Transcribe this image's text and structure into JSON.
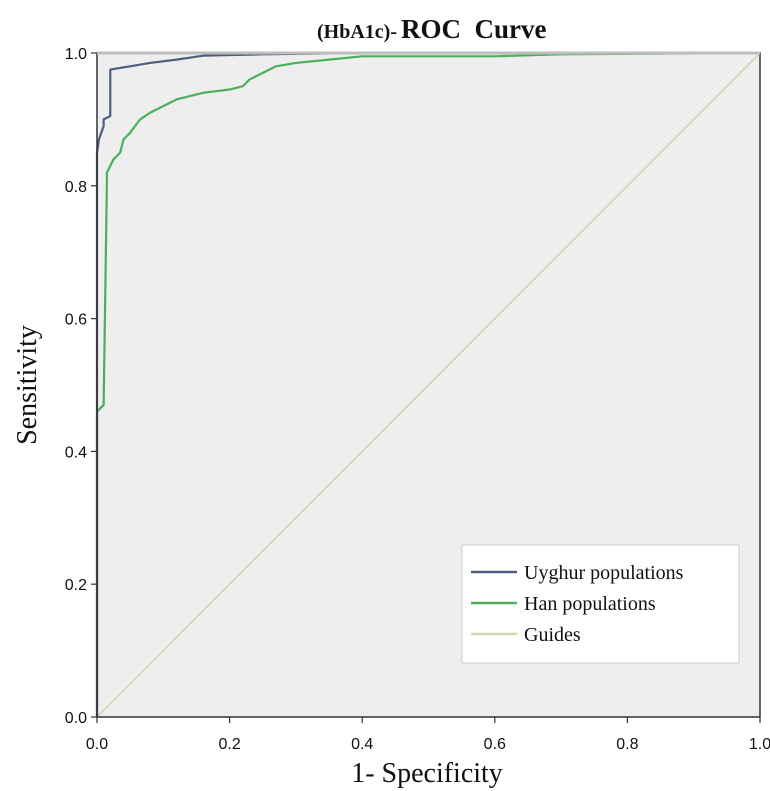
{
  "chart_data": {
    "type": "line",
    "title_prefix": "(HbA1c)-",
    "title": "ROC  Curve",
    "xlabel": "1- Specificity",
    "ylabel": "Sensitivity",
    "xlim": [
      0,
      1
    ],
    "ylim": [
      0,
      1
    ],
    "x_ticks": [
      "0.0",
      "0.2",
      "0.4",
      "0.6",
      "0.8",
      "1.0"
    ],
    "y_ticks": [
      "0.0",
      "0.2",
      "0.4",
      "0.6",
      "0.8",
      "1.0"
    ],
    "grid": false,
    "legend_position": "bottom-right",
    "plot_background": "#eeeeee",
    "series": [
      {
        "name": "Uyghur populations",
        "color": "#4f5d7e",
        "x": [
          0.0,
          0.0,
          0.003,
          0.01,
          0.01,
          0.02,
          0.02,
          0.05,
          0.08,
          0.12,
          0.16,
          0.25,
          0.4,
          0.6,
          1.0
        ],
        "y": [
          0.0,
          0.85,
          0.87,
          0.89,
          0.9,
          0.905,
          0.975,
          0.98,
          0.985,
          0.99,
          0.996,
          0.998,
          1.0,
          1.0,
          1.0
        ]
      },
      {
        "name": "Han populations",
        "color": "#4caf5a",
        "x": [
          0.0,
          0.0,
          0.01,
          0.01,
          0.015,
          0.015,
          0.025,
          0.035,
          0.04,
          0.05,
          0.065,
          0.08,
          0.1,
          0.12,
          0.16,
          0.2,
          0.22,
          0.23,
          0.24,
          0.27,
          0.3,
          0.35,
          0.4,
          0.5,
          0.6,
          0.7,
          1.0
        ],
        "y": [
          0.0,
          0.46,
          0.47,
          0.47,
          0.81,
          0.82,
          0.84,
          0.85,
          0.87,
          0.88,
          0.9,
          0.91,
          0.92,
          0.93,
          0.94,
          0.945,
          0.95,
          0.96,
          0.965,
          0.98,
          0.985,
          0.99,
          0.995,
          0.995,
          0.995,
          0.998,
          1.0
        ]
      },
      {
        "name": "Guides",
        "color": "#d3d6b4",
        "x": [
          0.0,
          1.0
        ],
        "y": [
          0.0,
          1.0
        ]
      }
    ]
  }
}
